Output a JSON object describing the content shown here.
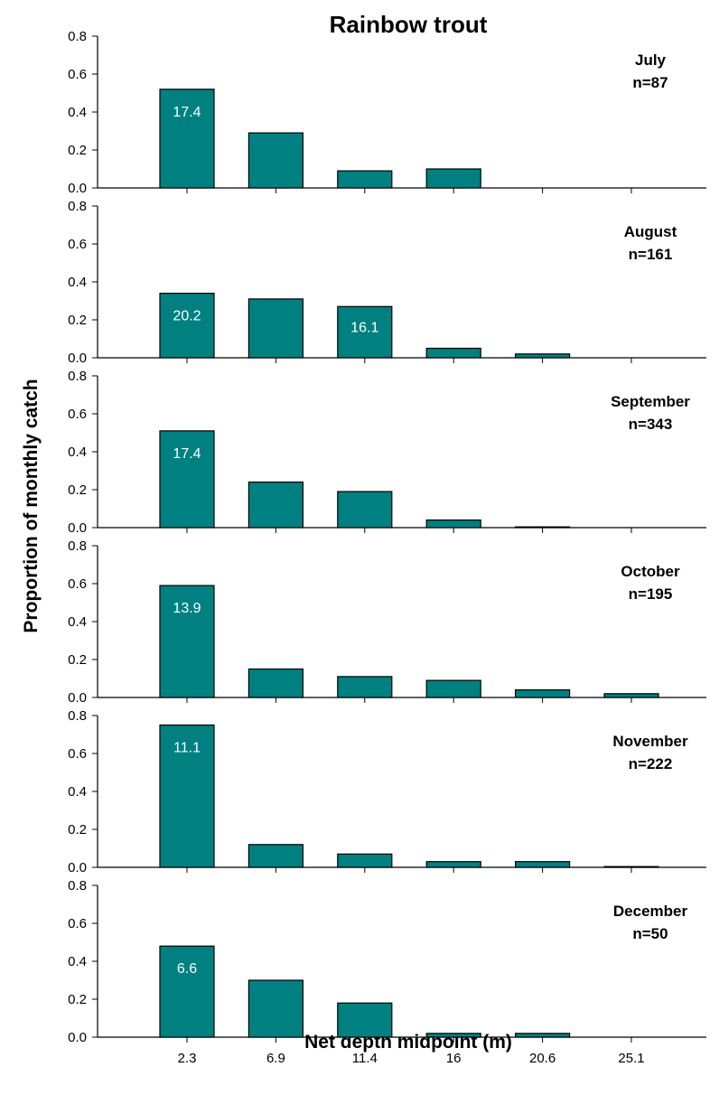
{
  "chart_data": {
    "type": "bar",
    "title": "Rainbow trout",
    "xlabel": "Net depth midpoint (m)",
    "ylabel": "Proportion of monthly catch",
    "categories": [
      "2.3",
      "6.9",
      "11.4",
      "16",
      "20.6",
      "25.1"
    ],
    "ylim": [
      0,
      0.8
    ],
    "yticks": [
      "0.0",
      "0.2",
      "0.4",
      "0.6",
      "0.8"
    ],
    "bar_color": "#008080",
    "grid": false,
    "panels": [
      {
        "month": "July",
        "n": "n=87",
        "values": [
          0.52,
          0.29,
          0.09,
          0.1,
          0,
          0
        ],
        "label": "17.4"
      },
      {
        "month": "August",
        "n": "n=161",
        "values": [
          0.34,
          0.31,
          0.27,
          0.05,
          0.02,
          0
        ],
        "label": "20.2",
        "label2": "16.1"
      },
      {
        "month": "September",
        "n": "n=343",
        "values": [
          0.51,
          0.24,
          0.19,
          0.04,
          0.004,
          0
        ],
        "label": "17.4"
      },
      {
        "month": "October",
        "n": "n=195",
        "values": [
          0.59,
          0.15,
          0.11,
          0.09,
          0.04,
          0.02
        ],
        "label": "13.9"
      },
      {
        "month": "November",
        "n": "n=222",
        "values": [
          0.75,
          0.12,
          0.07,
          0.03,
          0.03,
          0.004
        ],
        "label": "11.1"
      },
      {
        "month": "December",
        "n": "n=50",
        "values": [
          0.48,
          0.3,
          0.18,
          0.02,
          0.02,
          0
        ],
        "label": "6.6"
      }
    ]
  }
}
